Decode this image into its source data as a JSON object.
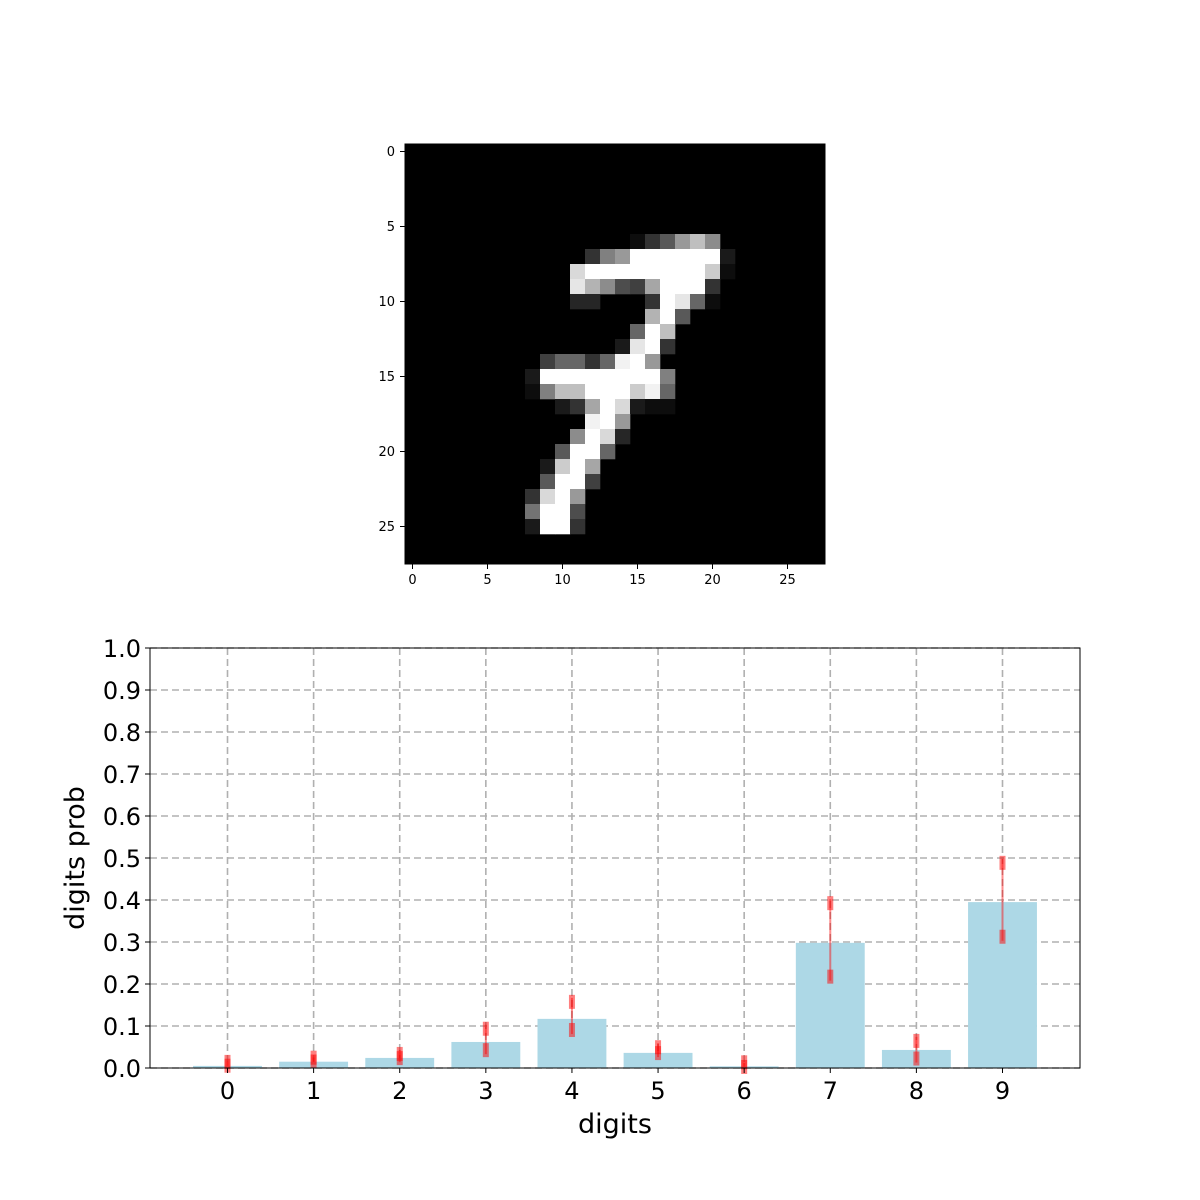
{
  "chart_data": [
    {
      "type": "heatmap",
      "colormap": "gray",
      "rows": 28,
      "cols": 28,
      "xticks": [
        0,
        5,
        10,
        15,
        20,
        25
      ],
      "yticks": [
        0,
        5,
        10,
        15,
        20,
        25
      ],
      "pixels": [
        [
          6,
          15,
          0.05
        ],
        [
          6,
          16,
          0.2
        ],
        [
          6,
          17,
          0.35
        ],
        [
          6,
          18,
          0.6
        ],
        [
          6,
          19,
          0.75
        ],
        [
          6,
          20,
          0.55
        ],
        [
          7,
          12,
          0.2
        ],
        [
          7,
          13,
          0.5
        ],
        [
          7,
          14,
          0.6
        ],
        [
          7,
          15,
          1.0
        ],
        [
          7,
          16,
          1.0
        ],
        [
          7,
          17,
          1.0
        ],
        [
          7,
          18,
          1.0
        ],
        [
          7,
          19,
          1.0
        ],
        [
          7,
          20,
          1.0
        ],
        [
          7,
          21,
          0.1
        ],
        [
          8,
          11,
          0.85
        ],
        [
          8,
          12,
          1.0
        ],
        [
          8,
          13,
          1.0
        ],
        [
          8,
          14,
          1.0
        ],
        [
          8,
          15,
          1.0
        ],
        [
          8,
          16,
          1.0
        ],
        [
          8,
          17,
          1.0
        ],
        [
          8,
          18,
          1.0
        ],
        [
          8,
          19,
          1.0
        ],
        [
          8,
          20,
          0.8
        ],
        [
          8,
          21,
          0.05
        ],
        [
          9,
          11,
          0.9
        ],
        [
          9,
          12,
          0.7
        ],
        [
          9,
          13,
          0.55
        ],
        [
          9,
          14,
          0.3
        ],
        [
          9,
          15,
          0.25
        ],
        [
          9,
          16,
          0.65
        ],
        [
          9,
          17,
          1.0
        ],
        [
          9,
          18,
          1.0
        ],
        [
          9,
          19,
          1.0
        ],
        [
          9,
          20,
          0.2
        ],
        [
          10,
          11,
          0.15
        ],
        [
          10,
          12,
          0.15
        ],
        [
          10,
          16,
          0.2
        ],
        [
          10,
          17,
          1.0
        ],
        [
          10,
          18,
          0.9
        ],
        [
          10,
          19,
          0.4
        ],
        [
          10,
          20,
          0.05
        ],
        [
          11,
          16,
          0.7
        ],
        [
          11,
          17,
          1.0
        ],
        [
          11,
          18,
          0.35
        ],
        [
          12,
          15,
          0.4
        ],
        [
          12,
          16,
          1.0
        ],
        [
          12,
          17,
          0.75
        ],
        [
          13,
          14,
          0.1
        ],
        [
          13,
          15,
          0.9
        ],
        [
          13,
          16,
          1.0
        ],
        [
          13,
          17,
          0.2
        ],
        [
          14,
          9,
          0.25
        ],
        [
          14,
          10,
          0.4
        ],
        [
          14,
          11,
          0.4
        ],
        [
          14,
          12,
          0.2
        ],
        [
          14,
          13,
          0.4
        ],
        [
          14,
          14,
          0.95
        ],
        [
          14,
          15,
          1.0
        ],
        [
          14,
          16,
          0.6
        ],
        [
          15,
          8,
          0.1
        ],
        [
          15,
          9,
          1.0
        ],
        [
          15,
          10,
          1.0
        ],
        [
          15,
          11,
          1.0
        ],
        [
          15,
          12,
          1.0
        ],
        [
          15,
          13,
          1.0
        ],
        [
          15,
          14,
          1.0
        ],
        [
          15,
          15,
          1.0
        ],
        [
          15,
          16,
          1.0
        ],
        [
          15,
          17,
          0.5
        ],
        [
          16,
          8,
          0.05
        ],
        [
          16,
          9,
          0.5
        ],
        [
          16,
          10,
          0.75
        ],
        [
          16,
          11,
          0.75
        ],
        [
          16,
          12,
          1.0
        ],
        [
          16,
          13,
          1.0
        ],
        [
          16,
          14,
          1.0
        ],
        [
          16,
          15,
          0.8
        ],
        [
          16,
          16,
          0.95
        ],
        [
          16,
          17,
          0.4
        ],
        [
          17,
          10,
          0.1
        ],
        [
          17,
          11,
          0.2
        ],
        [
          17,
          12,
          0.65
        ],
        [
          17,
          13,
          1.0
        ],
        [
          17,
          14,
          0.85
        ],
        [
          17,
          15,
          0.1
        ],
        [
          17,
          16,
          0.05
        ],
        [
          17,
          17,
          0.05
        ],
        [
          18,
          12,
          0.95
        ],
        [
          18,
          13,
          1.0
        ],
        [
          18,
          14,
          0.6
        ],
        [
          19,
          11,
          0.55
        ],
        [
          19,
          12,
          1.0
        ],
        [
          19,
          13,
          0.85
        ],
        [
          19,
          14,
          0.15
        ],
        [
          20,
          10,
          0.35
        ],
        [
          20,
          11,
          1.0
        ],
        [
          20,
          12,
          1.0
        ],
        [
          20,
          13,
          0.4
        ],
        [
          21,
          9,
          0.1
        ],
        [
          21,
          10,
          0.8
        ],
        [
          21,
          11,
          1.0
        ],
        [
          21,
          12,
          0.65
        ],
        [
          22,
          9,
          0.35
        ],
        [
          22,
          10,
          1.0
        ],
        [
          22,
          11,
          1.0
        ],
        [
          22,
          12,
          0.25
        ],
        [
          23,
          8,
          0.2
        ],
        [
          23,
          9,
          0.85
        ],
        [
          23,
          10,
          1.0
        ],
        [
          23,
          11,
          0.6
        ],
        [
          24,
          8,
          0.45
        ],
        [
          24,
          9,
          1.0
        ],
        [
          24,
          10,
          1.0
        ],
        [
          24,
          11,
          0.3
        ],
        [
          25,
          8,
          0.1
        ],
        [
          25,
          9,
          1.0
        ],
        [
          25,
          10,
          1.0
        ],
        [
          25,
          11,
          0.2
        ]
      ]
    },
    {
      "type": "bar",
      "categories": [
        "0",
        "1",
        "2",
        "3",
        "4",
        "5",
        "6",
        "7",
        "8",
        "9"
      ],
      "values": [
        0.005,
        0.015,
        0.024,
        0.062,
        0.117,
        0.036,
        0.004,
        0.298,
        0.043,
        0.395
      ],
      "error_low": [
        0.005,
        0.015,
        0.014,
        0.033,
        0.081,
        0.026,
        0.004,
        0.208,
        0.013,
        0.303
      ],
      "error_high": [
        0.015,
        0.025,
        0.043,
        0.103,
        0.167,
        0.059,
        0.012,
        0.402,
        0.074,
        0.498
      ],
      "ylim": [
        0,
        1.0
      ],
      "yticks": [
        "0.0",
        "0.1",
        "0.2",
        "0.3",
        "0.4",
        "0.5",
        "0.6",
        "0.7",
        "0.8",
        "0.9",
        "1.0"
      ],
      "xlabel": "digits",
      "ylabel": "digits prob",
      "grid": true,
      "bar_color": "#add8e6",
      "error_color": "#ff0000"
    }
  ]
}
